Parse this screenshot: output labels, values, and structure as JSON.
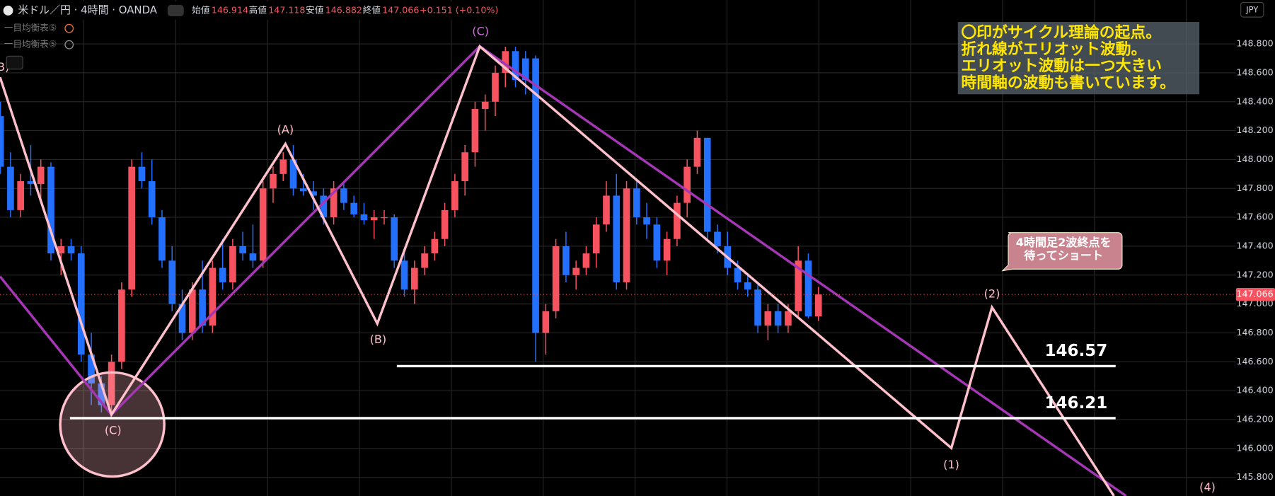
{
  "chart_data": {
    "type": "candlestick",
    "title": "米ドル／円 · 4時間 · OANDA",
    "ohlc_header": [
      {
        "label": "始値",
        "value": 146.914
      },
      {
        "label": "高値",
        "value": 147.118
      },
      {
        "label": "安値",
        "value": 146.882
      },
      {
        "label": "終値",
        "value": 147.066
      }
    ],
    "change": "+0.151 (+0.10%)",
    "indicators": [
      "一目均衡表⑤",
      "一目均衡表⑤"
    ],
    "currency": "JPY",
    "up_color": "#f7525f",
    "down_color": "#2370ff",
    "grid": true,
    "open": [
      148.3,
      147.95,
      147.65,
      147.85,
      147.83,
      147.95,
      147.35,
      147.4,
      147.35,
      146.65,
      146.45,
      146.3,
      146.6,
      147.1,
      147.95,
      147.85,
      147.6,
      147.3,
      147.0,
      146.8,
      147.1,
      146.85,
      147.25,
      147.15,
      147.4,
      147.35,
      147.3,
      147.8,
      147.9,
      148.0,
      147.8,
      147.78,
      147.75,
      147.6,
      147.8,
      147.7,
      147.62,
      147.58,
      147.6,
      147.6,
      147.3,
      147.1,
      147.25,
      147.35,
      147.45,
      147.65,
      147.85,
      148.05,
      148.35,
      148.4,
      148.6,
      148.75,
      148.7,
      148.7,
      146.8,
      146.95,
      147.4,
      147.2,
      147.25,
      147.35,
      147.55,
      147.75,
      147.15,
      147.8,
      147.6,
      147.55,
      147.3,
      147.45,
      147.7,
      147.95,
      148.15,
      147.5,
      147.4,
      147.25,
      147.15,
      147.1,
      146.85,
      146.95,
      146.85,
      146.95,
      147.3,
      146.914
    ],
    "high": [
      148.4,
      148.05,
      147.9,
      148.1,
      148.0,
      147.98,
      147.45,
      147.45,
      147.4,
      146.8,
      146.5,
      146.65,
      147.15,
      148.0,
      148.05,
      148.0,
      147.65,
      147.4,
      147.1,
      147.15,
      147.3,
      147.3,
      147.45,
      147.45,
      147.5,
      147.55,
      147.85,
      147.95,
      148.05,
      148.1,
      147.9,
      147.85,
      147.8,
      147.85,
      147.85,
      147.75,
      147.7,
      147.65,
      147.65,
      147.62,
      147.35,
      147.3,
      147.4,
      147.5,
      147.7,
      147.9,
      148.1,
      148.4,
      148.45,
      148.65,
      148.78,
      148.78,
      148.75,
      148.72,
      147.0,
      147.45,
      147.5,
      147.3,
      147.4,
      147.6,
      147.85,
      147.9,
      147.85,
      147.85,
      147.7,
      147.6,
      147.5,
      147.75,
      148.0,
      148.2,
      148.15,
      147.55,
      147.5,
      147.3,
      147.2,
      147.15,
      147.0,
      147.0,
      147.0,
      147.4,
      147.35,
      147.118
    ],
    "low": [
      147.9,
      147.6,
      147.6,
      147.75,
      147.7,
      147.3,
      147.2,
      147.3,
      146.6,
      146.3,
      146.25,
      146.25,
      146.55,
      147.05,
      147.8,
      147.55,
      147.25,
      146.95,
      146.75,
      146.75,
      146.8,
      146.8,
      147.1,
      147.1,
      147.3,
      147.25,
      147.25,
      147.7,
      147.85,
      147.75,
      147.75,
      147.65,
      147.55,
      147.55,
      147.65,
      147.6,
      147.55,
      147.45,
      147.55,
      147.25,
      147.05,
      147.0,
      147.2,
      147.3,
      147.4,
      147.6,
      147.75,
      147.95,
      148.2,
      148.3,
      148.5,
      148.5,
      148.45,
      146.6,
      146.65,
      146.9,
      147.15,
      147.1,
      147.2,
      147.25,
      147.5,
      147.1,
      147.1,
      147.55,
      147.45,
      147.25,
      147.2,
      147.4,
      147.6,
      147.9,
      147.45,
      147.35,
      147.2,
      147.1,
      147.05,
      146.8,
      146.75,
      146.8,
      146.8,
      146.9,
      146.9,
      146.882
    ],
    "close": [
      147.95,
      147.65,
      147.85,
      147.83,
      147.95,
      147.35,
      147.4,
      147.35,
      146.65,
      146.45,
      146.3,
      146.6,
      147.1,
      147.95,
      147.85,
      147.6,
      147.3,
      147.0,
      146.8,
      147.1,
      146.85,
      147.25,
      147.15,
      147.4,
      147.35,
      147.3,
      147.8,
      147.9,
      148.0,
      147.8,
      147.78,
      147.75,
      147.6,
      147.8,
      147.7,
      147.62,
      147.58,
      147.6,
      147.6,
      147.3,
      147.1,
      147.25,
      147.35,
      147.45,
      147.65,
      147.85,
      148.05,
      148.35,
      148.4,
      148.6,
      148.75,
      148.55,
      148.55,
      146.8,
      146.95,
      147.4,
      147.2,
      147.25,
      147.35,
      147.55,
      147.75,
      147.15,
      147.8,
      147.6,
      147.55,
      147.3,
      147.45,
      147.7,
      147.95,
      148.15,
      147.5,
      147.4,
      147.25,
      147.15,
      147.1,
      146.85,
      146.95,
      146.85,
      146.95,
      147.3,
      146.914,
      147.066
    ],
    "last_price": 147.066,
    "ylim": [
      145.671,
      149.104
    ],
    "yticks": [
      {
        "value": 145.8,
        "label": "145.800"
      },
      {
        "value": 146.0,
        "label": "146.000"
      },
      {
        "value": 146.2,
        "label": "146.200"
      },
      {
        "value": 146.4,
        "label": "146.400"
      },
      {
        "value": 146.6,
        "label": "146.600"
      },
      {
        "value": 146.8,
        "label": "146.800"
      },
      {
        "value": 147.0,
        "label": "147.000"
      },
      {
        "value": 147.2,
        "label": "147.200"
      },
      {
        "value": 147.4,
        "label": "147.400"
      },
      {
        "value": 147.6,
        "label": "147.600"
      },
      {
        "value": 147.8,
        "label": "147.800"
      },
      {
        "value": 148.0,
        "label": "148.000"
      },
      {
        "value": 148.2,
        "label": "148.200"
      },
      {
        "value": 148.4,
        "label": "148.400"
      },
      {
        "value": 148.6,
        "label": "148.600"
      },
      {
        "value": 148.8,
        "label": "148.800"
      }
    ],
    "levels": [
      146.57,
      146.21
    ],
    "wave_labels": [
      "B)",
      "(C)",
      "(A)",
      "(B)",
      "(C)",
      "(1)",
      "(2)",
      "(4)"
    ],
    "note_lines": [
      "〇印がサイクル理論の起点。",
      "折れ線がエリオット波動。",
      "エリオット波動は一つ大きい",
      "時間軸の波動も書いています。"
    ],
    "callout_lines": [
      "4時間足2波終点を",
      "待ってショート"
    ]
  }
}
